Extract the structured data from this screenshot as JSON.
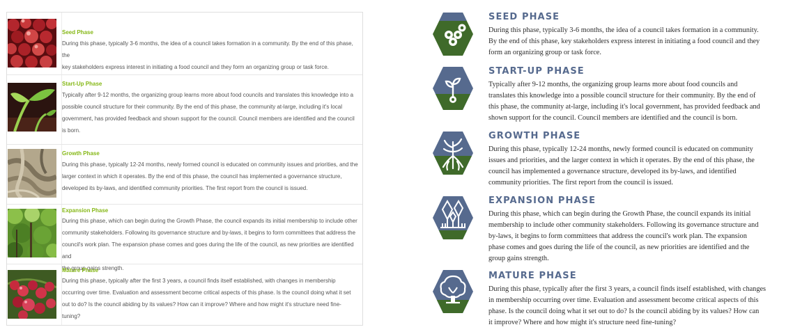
{
  "left": {
    "items": [
      {
        "title": "Seed Phase",
        "lines": [
          "During this phase, typically 3-6 months, the idea of a council takes formation in a community.  By the end of this phase, the",
          "key stakeholders express interest in initiating a food council and they form an organizing group or task force."
        ]
      },
      {
        "title": "Start-Up Phase",
        "lines": [
          "Typically after 9-12 months, the organizing group learns more about food councils and translates this knowledge into a",
          "possible council structure for their community.  By the end of this phase, the community at-large, including it's local",
          "government, has provided feedback and shown support for the council. Council members are identified and the council",
          "is born."
        ]
      },
      {
        "title": "Growth Phase",
        "lines": [
          "During this phase, typically 12-24 months, newly formed council is educated on community issues and priorities, and the",
          "larger context in which it operates. By the end of this phase, the council has implemented a governance structure,",
          "developed its by-laws, and identified community priorities.  The first report from the council is issued."
        ]
      },
      {
        "title": "Expansion Phase",
        "lines": [
          "During this phase, which can begin during the Growth Phase, the council expands its initial membership to include other",
          "community stakeholders.  Following its governance structure and by-laws, it begins to form committees that address the",
          "council's work plan.  The expansion phase comes and goes during the life of the council, as new priorities are identified and",
          "the group gains strength."
        ]
      },
      {
        "title": "Mature Phase",
        "lines": [
          "During this phase, typically after the first 3 years, a council finds itself established, with changes in membership",
          "occurring over time.  Evaluation and assessment become critical aspects of this phase.  Is the council doing what it set",
          "out to do?  Is the council abiding by its values?  How can it improve?  Where and how might it's structure need fine-",
          "tuning?"
        ]
      }
    ]
  },
  "right": {
    "items": [
      {
        "title": "SEED PHASE",
        "icon": "seed-icon",
        "lines": [
          "During this phase, typically 3-6 months, the idea of a council takes formation in a community.",
          "By the end of this phase, key stakeholders express interest in initiating a food council and they",
          "form an organizing group or task force."
        ]
      },
      {
        "title": "START-UP PHASE",
        "icon": "sprout-icon",
        "lines": [
          "Typically after 9-12 months, the organizing group learns more about food councils and",
          "translates this knowledge into a possible council structure for their community.  By the end of",
          "this phase, the community at-large, including it's local government, has provided feedback and",
          "shown support for the council. Council members are identified and the council is born."
        ]
      },
      {
        "title": "GROWTH PHASE",
        "icon": "roots-icon",
        "lines": [
          "During this phase, typically 12-24 months, newly formed council is educated on community",
          "issues and priorities, and the larger context in which it operates. By the end of this phase, the",
          "council has implemented a governance structure, developed its by-laws, and identified",
          "community priorities.  The first report from the council is issued."
        ]
      },
      {
        "title": "EXPANSION PHASE",
        "icon": "forest-icon",
        "lines": [
          "During this phase, which can begin during the Growth Phase, the council expands its initial",
          "membership to include other community stakeholders.  Following its governance structure and",
          "by-laws, it begins to form committees that address the council's work plan.  The expansion",
          "phase comes and goes during the life of the council, as new priorities are identified and the",
          "group gains strength."
        ]
      },
      {
        "title": "MATURE PHASE",
        "icon": "tree-icon",
        "lines": [
          "During this phase, typically after the first 3 years, a council finds itself established, with changes",
          "in membership occurring over time.  Evaluation and assessment become critical aspects of this",
          "phase.  Is the council doing what it set out to do?  Is the council abiding by its values? How can",
          "it improve?  Where and how might it's structure need fine-tuning?"
        ]
      }
    ]
  },
  "colors": {
    "hex_blue": "#566a8e",
    "hex_green": "#3f6a2a",
    "left_title_green": "#86b817"
  }
}
